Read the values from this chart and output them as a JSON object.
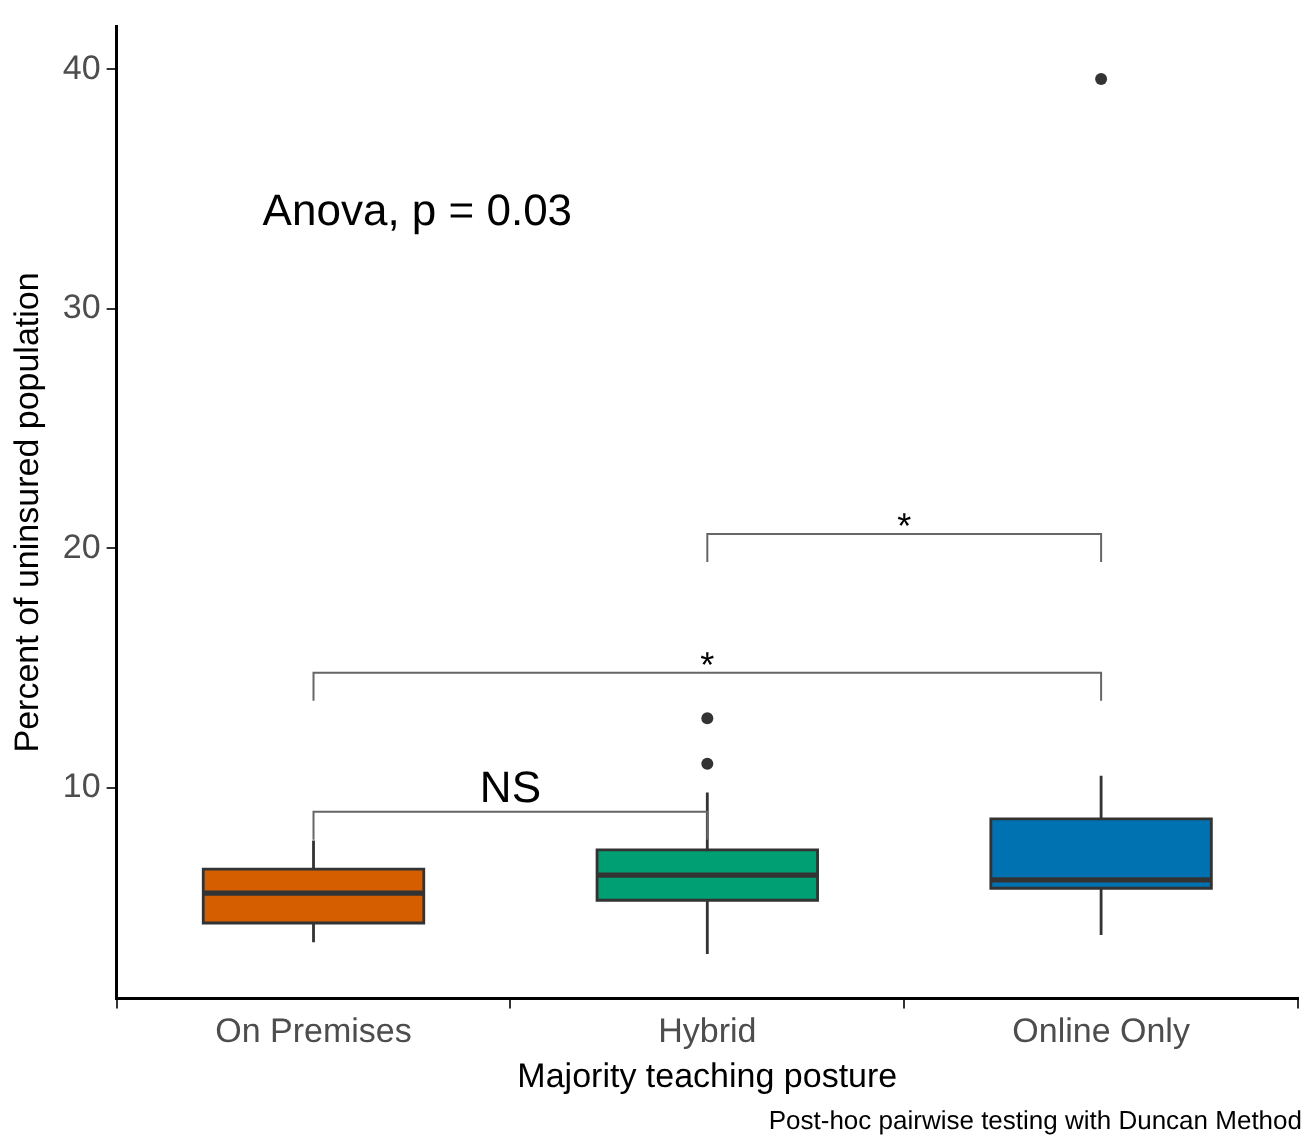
{
  "chart_data": {
    "type": "box",
    "xlabel": "Majority teaching posture",
    "ylabel": "Percent of uninsured population",
    "categories": [
      "On Premises",
      "Hybrid",
      "Online Only"
    ],
    "colors": [
      "#d55e00",
      "#009e73",
      "#0072b2"
    ],
    "boxes": [
      {
        "low": 3.55,
        "q1": 4.35,
        "median": 5.6,
        "q3": 6.6,
        "high": 7.8
      },
      {
        "low": 3.05,
        "q1": 5.3,
        "median": 6.35,
        "q3": 7.4,
        "high": 9.8,
        "outliers": [
          11.0,
          12.9
        ]
      },
      {
        "low": 3.85,
        "q1": 5.8,
        "median": 6.15,
        "q3": 8.7,
        "high": 10.5,
        "outliers": [
          39.6
        ]
      }
    ],
    "ylim": [
      1.2,
      41.8
    ],
    "yticks": [
      10,
      20,
      30,
      40
    ],
    "grid": false,
    "legend": false,
    "annotations": [
      "Anova, p = 0.03",
      "NS",
      "*",
      "*",
      "Post-hoc pairwise testing with Duncan Method"
    ]
  }
}
